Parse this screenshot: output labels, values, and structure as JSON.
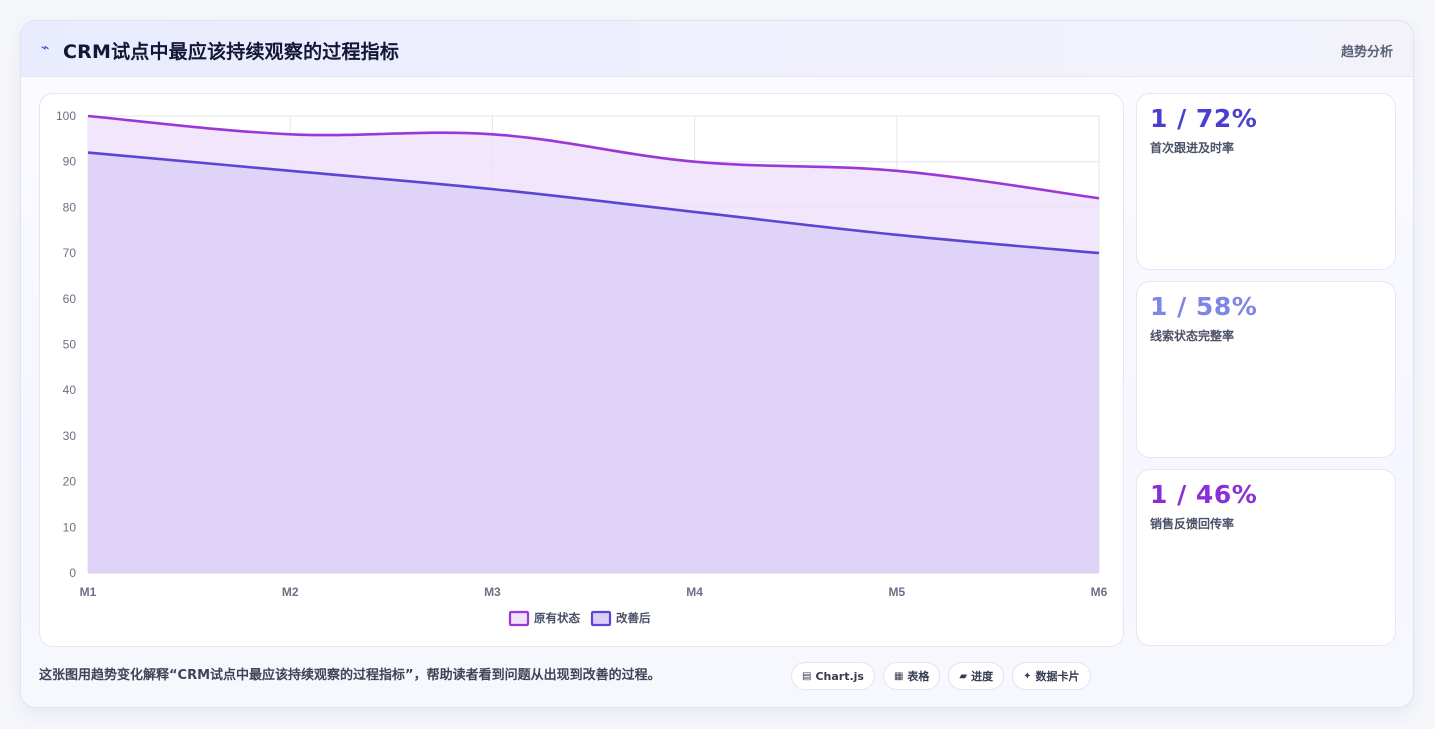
{
  "header": {
    "icon": "trend-line-icon",
    "title": "CRM试点中最应该持续观察的过程指标",
    "tag": "趋势分析"
  },
  "kpis": [
    {
      "value": "1 / 72%",
      "label": "首次跟进及时率",
      "color": "#4b3fd0"
    },
    {
      "value": "1 / 58%",
      "label": "线索状态完整率",
      "color": "#7d86e6"
    },
    {
      "value": "1 / 46%",
      "label": "销售反馈回传率",
      "color": "#8a2fd6"
    }
  ],
  "footer": {
    "description": "这张图用趋势变化解释“CRM试点中最应该持续观察的过程指标”，帮助读者看到问题从出现到改善的过程。",
    "chips": [
      {
        "icon": "chart-icon",
        "label": "Chart.js"
      },
      {
        "icon": "table-icon",
        "label": "表格"
      },
      {
        "icon": "progress-icon",
        "label": "进度"
      },
      {
        "icon": "sparkle-icon",
        "label": "数据卡片"
      }
    ]
  },
  "chart_data": {
    "type": "area",
    "categories": [
      "M1",
      "M2",
      "M3",
      "M4",
      "M5",
      "M6"
    ],
    "series": [
      {
        "name": "原有状态",
        "values": [
          100,
          96,
          96,
          90,
          88,
          82
        ],
        "color": "#9b37d6",
        "fill": "#efe2fa"
      },
      {
        "name": "改善后",
        "values": [
          92,
          88,
          84,
          79,
          74,
          70
        ],
        "color": "#5a46d4",
        "fill": "#dccff7"
      }
    ],
    "yticks": [
      0,
      10,
      20,
      30,
      40,
      50,
      60,
      70,
      80,
      90,
      100
    ],
    "ylim": [
      0,
      100
    ],
    "grid": true,
    "legend": "bottom",
    "xlabel": "",
    "ylabel": ""
  }
}
